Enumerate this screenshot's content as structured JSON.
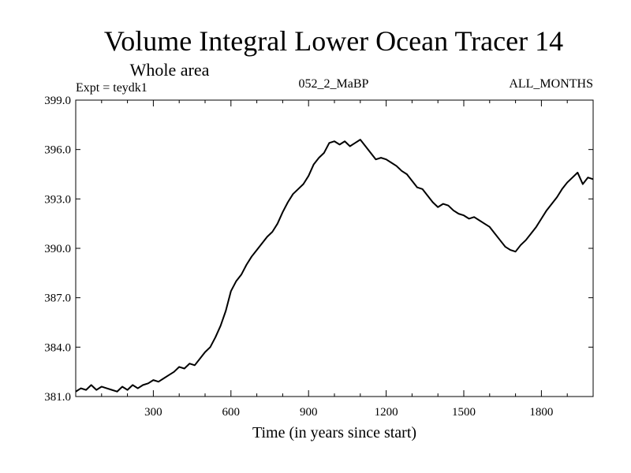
{
  "chart_data": {
    "type": "line",
    "title": "Volume Integral Lower Ocean Tracer 14",
    "subtitle": "Whole area",
    "expt_label": "Expt = teydk1",
    "period_label": "052_2_MaBP",
    "months_label": "ALL_MONTHS",
    "xlabel": "Time (in years since start)",
    "ylabel": "",
    "xlim": [
      0,
      2000
    ],
    "ylim": [
      381.0,
      399.0
    ],
    "xticks": [
      300,
      600,
      900,
      1200,
      1500,
      1800
    ],
    "xtick_labels": [
      "300",
      "600",
      "900",
      "1200",
      "1500",
      "1800"
    ],
    "yticks": [
      381.0,
      384.0,
      387.0,
      390.0,
      393.0,
      396.0,
      399.0
    ],
    "ytick_labels": [
      "381.0",
      "384.0",
      "387.0",
      "390.0",
      "393.0",
      "396.0",
      "399.0"
    ],
    "line_color": "#000000",
    "series": [
      {
        "name": "Lower Ocean Tracer 14",
        "x": [
          0,
          20,
          40,
          60,
          80,
          100,
          120,
          140,
          160,
          180,
          200,
          220,
          240,
          260,
          280,
          300,
          320,
          340,
          360,
          380,
          400,
          420,
          440,
          460,
          480,
          500,
          520,
          540,
          560,
          580,
          600,
          620,
          640,
          660,
          680,
          700,
          720,
          740,
          760,
          780,
          800,
          820,
          840,
          860,
          880,
          900,
          920,
          940,
          960,
          980,
          1000,
          1020,
          1040,
          1060,
          1080,
          1100,
          1120,
          1140,
          1160,
          1180,
          1200,
          1220,
          1240,
          1260,
          1280,
          1300,
          1320,
          1340,
          1360,
          1380,
          1400,
          1420,
          1440,
          1460,
          1480,
          1500,
          1520,
          1540,
          1560,
          1580,
          1600,
          1620,
          1640,
          1660,
          1680,
          1700,
          1720,
          1740,
          1760,
          1780,
          1800,
          1820,
          1840,
          1860,
          1880,
          1900,
          1920,
          1940,
          1960,
          1980,
          2000
        ],
        "values": [
          381.3,
          381.5,
          381.4,
          381.7,
          381.4,
          381.6,
          381.5,
          381.4,
          381.3,
          381.6,
          381.4,
          381.7,
          381.5,
          381.7,
          381.8,
          382.0,
          381.9,
          382.1,
          382.3,
          382.5,
          382.8,
          382.7,
          383.0,
          382.9,
          383.3,
          383.7,
          384.0,
          384.6,
          385.3,
          386.2,
          387.4,
          388.0,
          388.4,
          389.0,
          389.5,
          389.9,
          390.3,
          390.7,
          391.0,
          391.5,
          392.2,
          392.8,
          393.3,
          393.6,
          393.9,
          394.4,
          395.1,
          395.5,
          395.8,
          396.4,
          396.5,
          396.3,
          396.5,
          396.2,
          396.4,
          396.6,
          396.2,
          395.8,
          395.4,
          395.5,
          395.4,
          395.2,
          395.0,
          394.7,
          394.5,
          394.1,
          393.7,
          393.6,
          393.2,
          392.8,
          392.5,
          392.7,
          392.6,
          392.3,
          392.1,
          392.0,
          391.8,
          391.9,
          391.7,
          391.5,
          391.3,
          390.9,
          390.5,
          390.1,
          389.9,
          389.8,
          390.2,
          390.5,
          390.9,
          391.3,
          391.8,
          392.3,
          392.7,
          393.1,
          393.6,
          394.0,
          394.3,
          394.6,
          393.9,
          394.3,
          394.2
        ]
      }
    ]
  }
}
